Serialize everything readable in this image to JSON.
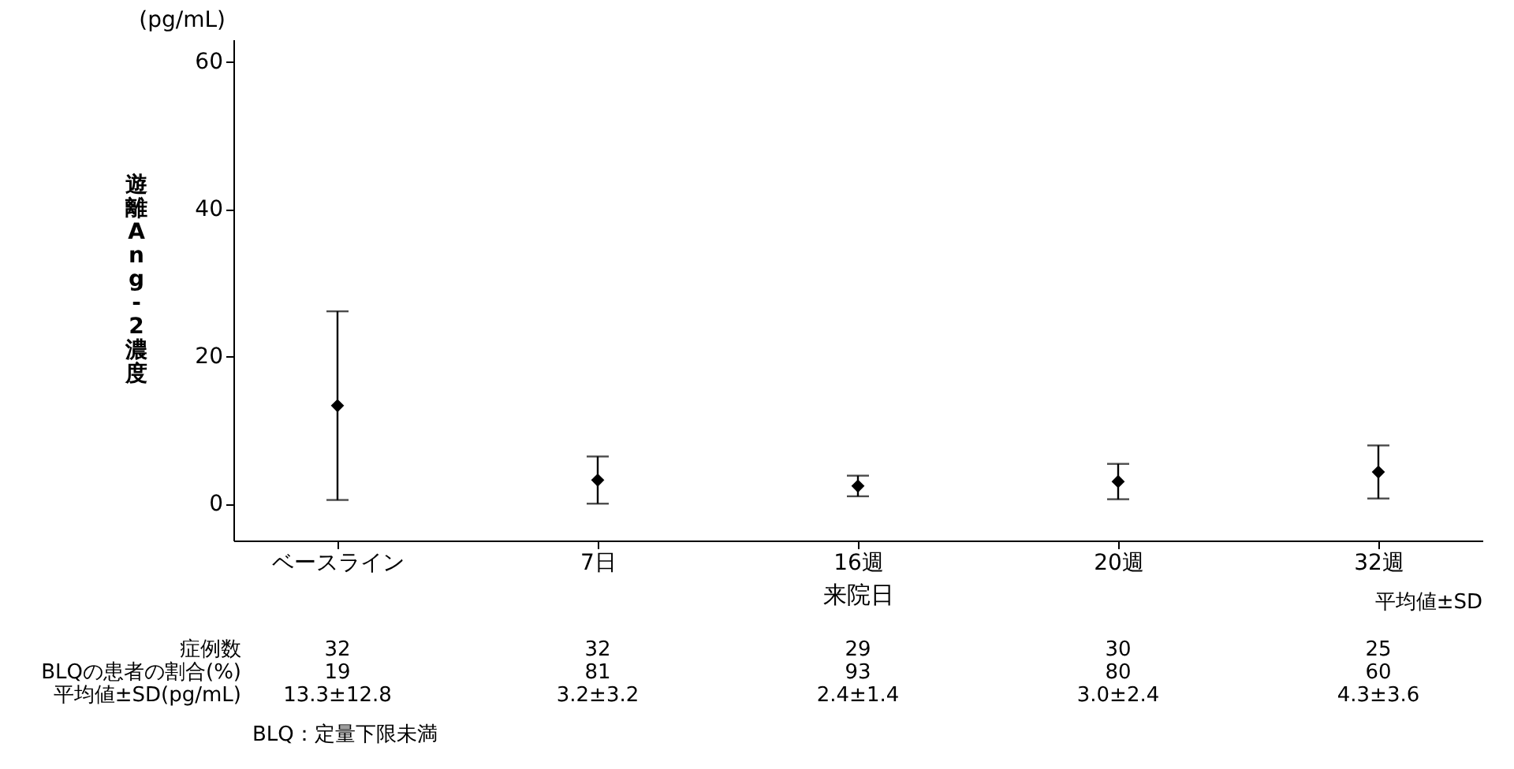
{
  "chart_data": {
    "type": "scatter",
    "xlabel": "来院日",
    "ylabel": "遊離Ang-2濃度",
    "categories": [
      "ベースライン",
      "7日",
      "16週",
      "20週",
      "32週"
    ],
    "series": [
      {
        "color": "#000000",
        "values": [
          13.3,
          3.2,
          2.4,
          3.0,
          4.3
        ],
        "errors": [
          12.8,
          3.2,
          1.4,
          2.4,
          3.6
        ]
      }
    ],
    "marker": "diamond",
    "ylim": [
      -5,
      63
    ],
    "yticks": [
      0,
      20,
      40,
      60
    ],
    "grid": false,
    "annotations": [
      "(pg/mL)",
      "平均値±SD",
      "症例数",
      "32",
      "32",
      "29",
      "30",
      "25",
      "BLQの患者の割合(%)",
      "19",
      "81",
      "93",
      "80",
      "60",
      "平均値±SD(pg/mL)",
      "13.3±12.8",
      "3.2±3.2",
      "2.4±1.4",
      "3.0±2.4",
      "4.3±3.6",
      "BLQ：定量下限未満"
    ]
  }
}
